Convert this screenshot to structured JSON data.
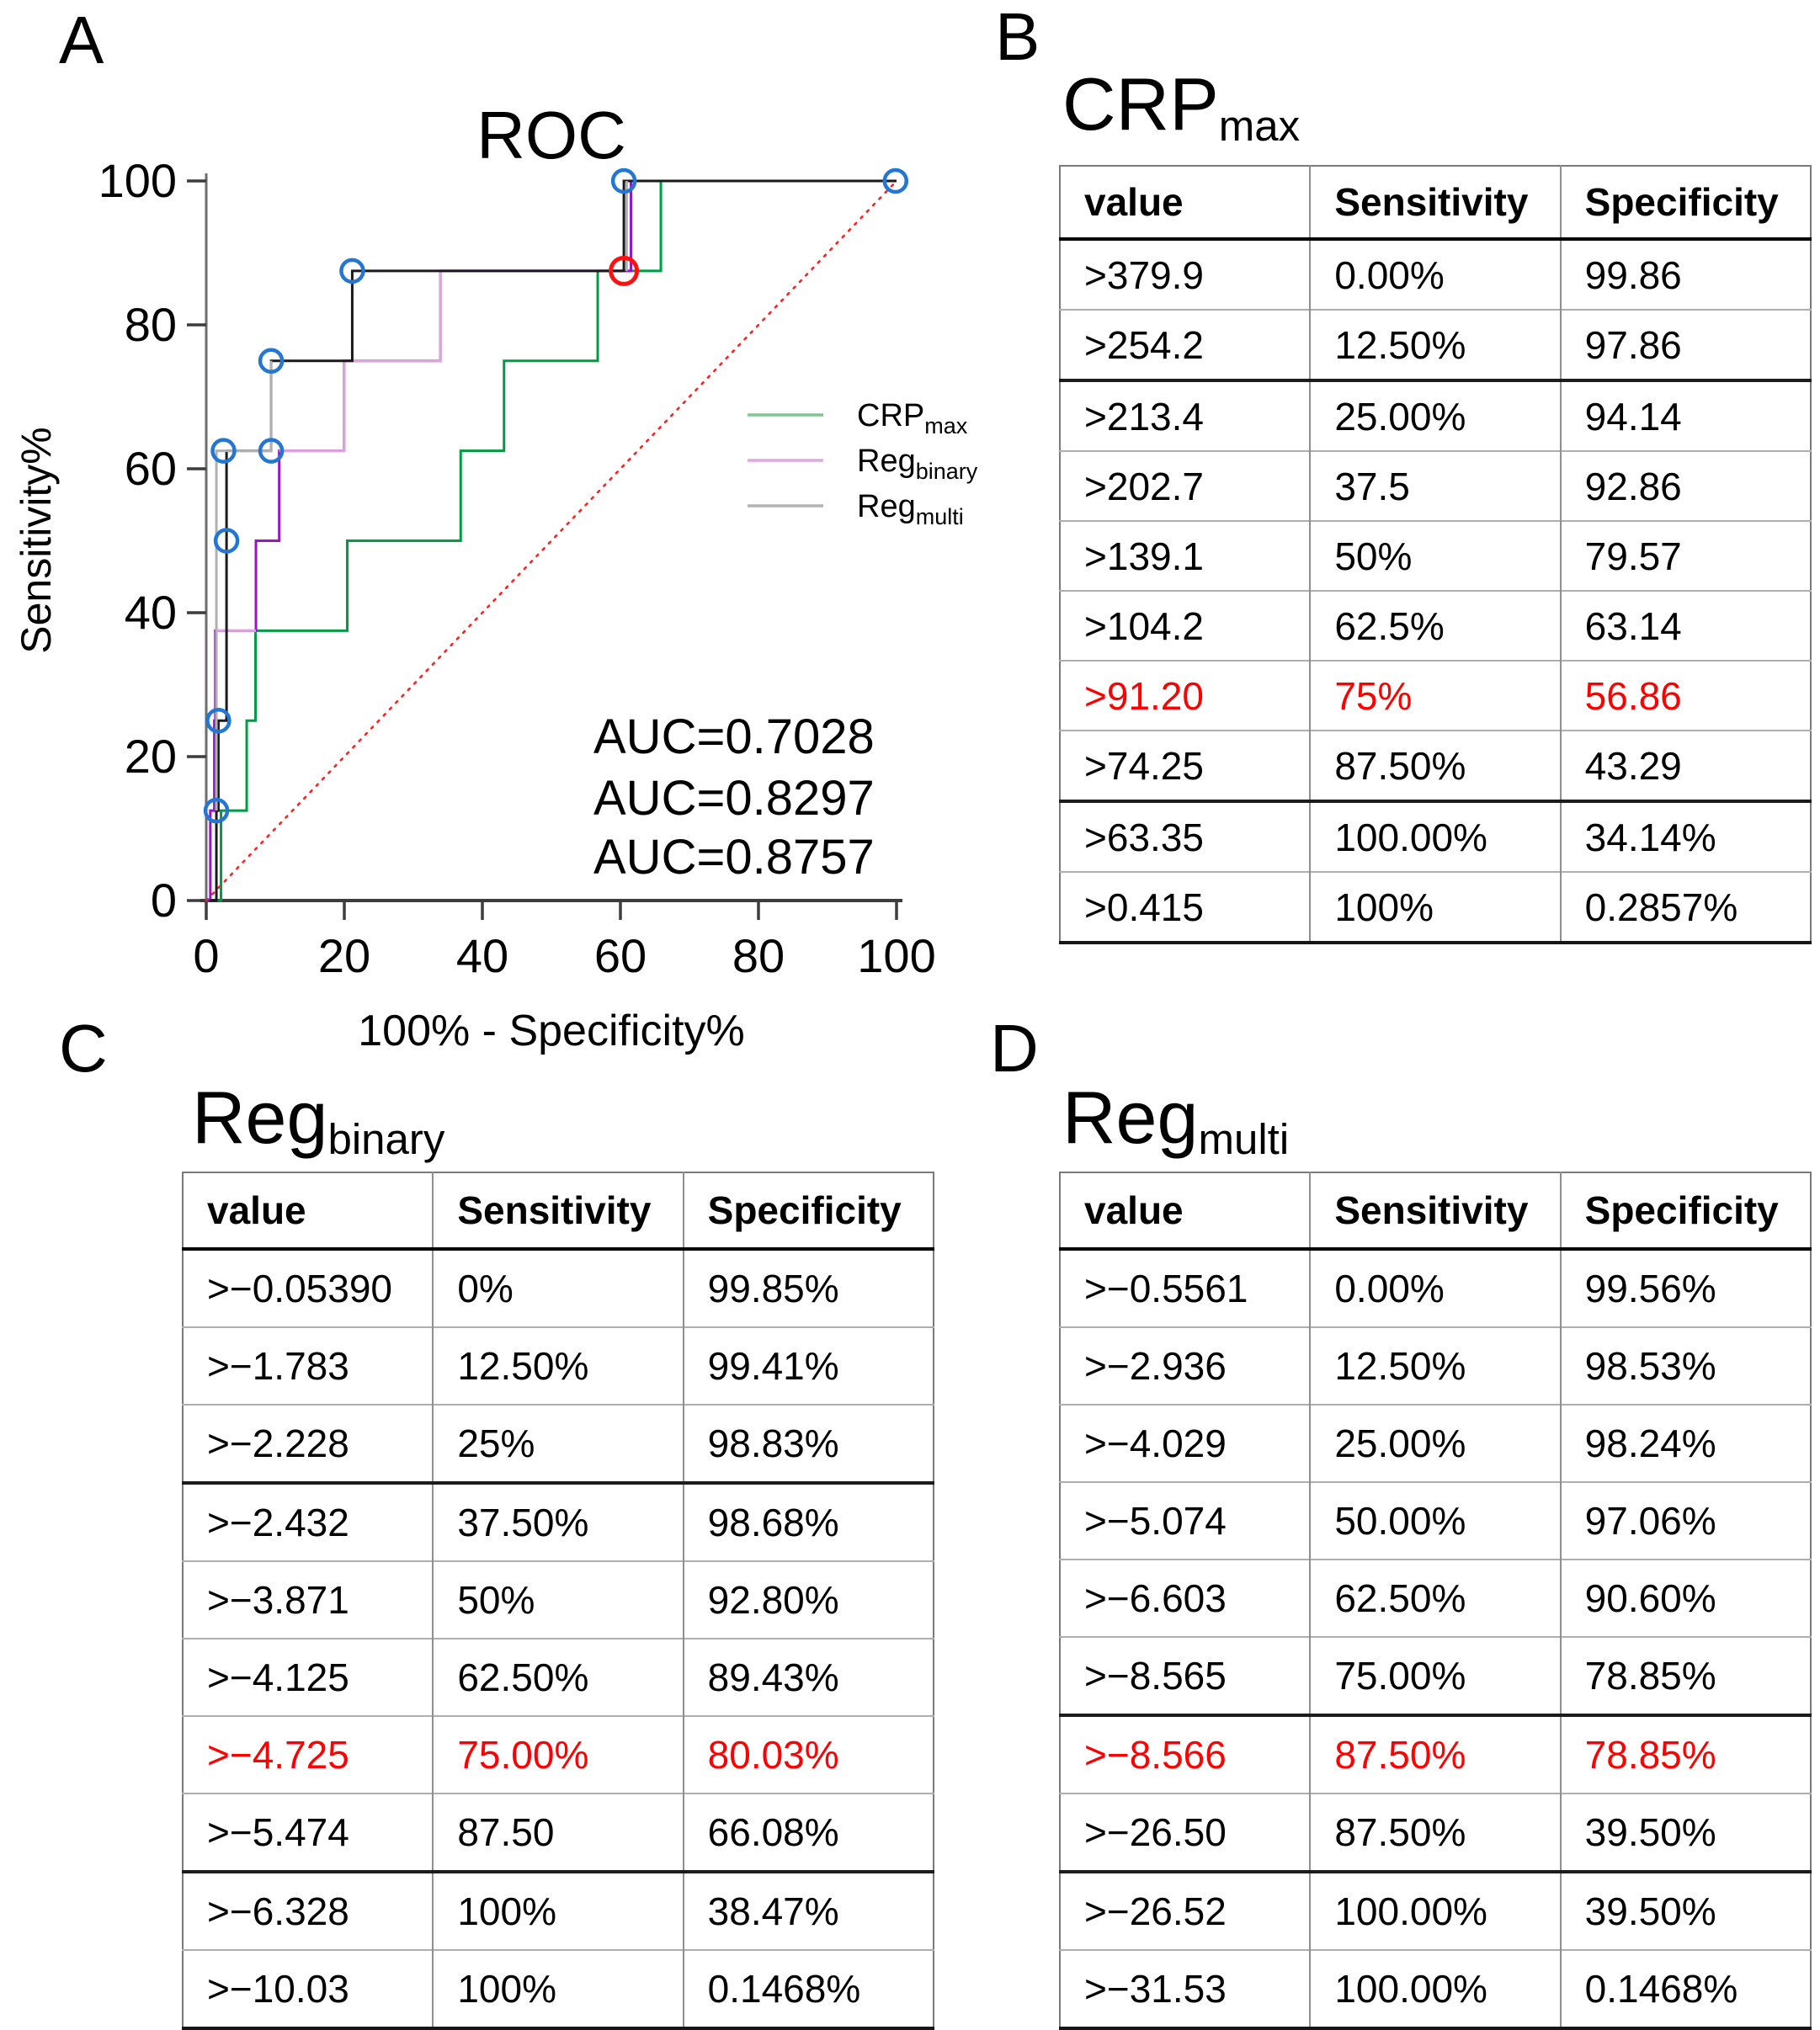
{
  "panels": {
    "a": {
      "label": "A",
      "chart_data": {
        "type": "line",
        "title": "ROC",
        "xlabel": "100% - Specificity%",
        "ylabel": "Sensitivity%",
        "xlim": [
          0,
          100
        ],
        "ylim": [
          0,
          100
        ],
        "xticks": [
          0,
          20,
          40,
          60,
          80,
          100
        ],
        "yticks": [
          0,
          20,
          40,
          60,
          80,
          100
        ],
        "grid": false,
        "legend_position": "right-inside",
        "diagonal": {
          "from": [
            0,
            0
          ],
          "to": [
            100,
            100
          ],
          "color": "#ff2020",
          "style": "dotted"
        },
        "series": [
          {
            "name": {
              "base": "CRP",
              "sub": "max"
            },
            "color": "#009c41",
            "legend_color": "#7dc98f",
            "auc": 0.7028,
            "points": [
              [
                0.14,
                0
              ],
              [
                2.14,
                0
              ],
              [
                2.14,
                12.5
              ],
              [
                5.86,
                12.5
              ],
              [
                5.86,
                25
              ],
              [
                7.14,
                25
              ],
              [
                7.14,
                37.5
              ],
              [
                20.43,
                37.5
              ],
              [
                20.43,
                50
              ],
              [
                36.86,
                50
              ],
              [
                36.86,
                62.5
              ],
              [
                43.14,
                62.5
              ],
              [
                43.14,
                75
              ],
              [
                56.71,
                75
              ],
              [
                56.71,
                87.5
              ],
              [
                65.86,
                87.5
              ],
              [
                65.86,
                100
              ],
              [
                99.71,
                100
              ],
              [
                100,
                100
              ]
            ]
          },
          {
            "name": {
              "base": "Reg",
              "sub": "binary"
            },
            "color": "#9417c2",
            "legend_color": "#dfa6e0",
            "auc": 0.8297,
            "points": [
              [
                0.15,
                0
              ],
              [
                0.59,
                0
              ],
              [
                0.59,
                12.5
              ],
              [
                1.17,
                12.5
              ],
              [
                1.17,
                25
              ],
              [
                1.32,
                25
              ],
              [
                1.32,
                37.5
              ],
              [
                7.2,
                37.5
              ],
              [
                7.2,
                50
              ],
              [
                10.57,
                50
              ],
              [
                10.57,
                62.5
              ],
              [
                19.97,
                62.5
              ],
              [
                19.97,
                75
              ],
              [
                33.92,
                75
              ],
              [
                33.92,
                87.5
              ],
              [
                61.53,
                87.5
              ],
              [
                61.53,
                100
              ],
              [
                99.85,
                100
              ],
              [
                100,
                100
              ]
            ],
            "overlay_color": "#dca3dd",
            "overlays": [
              [
                [
                  1.32,
                  37.5
                ],
                [
                  7.2,
                  37.5
                ]
              ],
              [
                [
                  10.57,
                  62.5
                ],
                [
                  19.97,
                  62.5
                ],
                [
                  19.97,
                  75
                ],
                [
                  33.92,
                  75
                ],
                [
                  33.92,
                  87.5
                ]
              ]
            ]
          },
          {
            "name": {
              "base": "Reg",
              "sub": "multi"
            },
            "color": "#1a1a1a",
            "legend_color": "#b3b3b3",
            "auc": 0.8757,
            "points": [
              [
                0.44,
                0
              ],
              [
                1.47,
                0
              ],
              [
                1.47,
                12.5
              ],
              [
                1.76,
                12.5
              ],
              [
                1.76,
                25
              ],
              [
                2.94,
                25
              ],
              [
                2.94,
                62.5
              ],
              [
                9.4,
                62.5
              ],
              [
                9.4,
                75
              ],
              [
                21.15,
                75
              ],
              [
                21.15,
                87.5
              ],
              [
                60.5,
                87.5
              ],
              [
                60.5,
                100
              ],
              [
                99.85,
                100
              ],
              [
                100,
                100
              ]
            ],
            "overlay_color": "#b0b0b0",
            "overlays": [
              [
                [
                  1.47,
                  12.5
                ],
                [
                  1.47,
                  62.5
                ],
                [
                  9.4,
                  62.5
                ],
                [
                  9.4,
                  75
                ]
              ],
              [
                [
                  60.9,
                  87.5
                ],
                [
                  60.9,
                  100
                ]
              ]
            ]
          }
        ],
        "markers": {
          "step_points": {
            "color": "#2376d2",
            "radius": 13,
            "points": [
              [
                1.47,
                12.5
              ],
              [
                1.76,
                25
              ],
              [
                2.94,
                50
              ],
              [
                2.5,
                62.5
              ],
              [
                9.4,
                62.5
              ],
              [
                9.4,
                75
              ],
              [
                21.15,
                87.5
              ],
              [
                60.5,
                100
              ],
              [
                99.85,
                100
              ]
            ]
          },
          "cutoff_point": {
            "color": "#ff1111",
            "radius": 15.5,
            "points": [
              [
                60.5,
                87.5
              ]
            ]
          }
        },
        "auc_labels": [
          {
            "text": "AUC=0.7028",
            "color": "#00a33c"
          },
          {
            "text": "AUC=0.8297",
            "color": "#a81bc4"
          },
          {
            "text": "AUC=0.8757",
            "color": "#000000"
          }
        ]
      }
    },
    "b": {
      "label": "B",
      "title": {
        "base": "CRP",
        "sub": "max"
      },
      "table": {
        "headers": [
          "value",
          "Sensitivity",
          "Specificity"
        ],
        "thick_row_tops": [
          2,
          8
        ],
        "rows": [
          {
            "value": ">379.9",
            "sensitivity": "0.00%",
            "specificity": "99.86",
            "red": false
          },
          {
            "value": ">254.2",
            "sensitivity": "12.50%",
            "specificity": "97.86",
            "red": false
          },
          {
            "value": ">213.4",
            "sensitivity": "25.00%",
            "specificity": "94.14",
            "red": false
          },
          {
            "value": ">202.7",
            "sensitivity": "37.5",
            "specificity": "92.86",
            "red": false
          },
          {
            "value": ">139.1",
            "sensitivity": "50%",
            "specificity": "79.57",
            "red": false
          },
          {
            "value": ">104.2",
            "sensitivity": "62.5%",
            "specificity": "63.14",
            "red": false
          },
          {
            "value": ">91.20",
            "sensitivity": "75%",
            "specificity": "56.86",
            "red": true
          },
          {
            "value": ">74.25",
            "sensitivity": "87.50%",
            "specificity": "43.29",
            "red": false
          },
          {
            "value": ">63.35",
            "sensitivity": "100.00%",
            "specificity": "34.14%",
            "red": false
          },
          {
            "value": ">0.415",
            "sensitivity": "100%",
            "specificity": "0.2857%",
            "red": false
          }
        ]
      }
    },
    "c": {
      "label": "C",
      "title": {
        "base": "Reg",
        "sub": "binary"
      },
      "table": {
        "headers": [
          "value",
          "Sensitivity",
          "Specificity"
        ],
        "thick_row_tops": [
          3,
          8
        ],
        "rows": [
          {
            "value": ">−0.05390",
            "sensitivity": "0%",
            "specificity": "99.85%",
            "red": false
          },
          {
            "value": ">−1.783",
            "sensitivity": "12.50%",
            "specificity": "99.41%",
            "red": false
          },
          {
            "value": ">−2.228",
            "sensitivity": "25%",
            "specificity": "98.83%",
            "red": false
          },
          {
            "value": ">−2.432",
            "sensitivity": "37.50%",
            "specificity": "98.68%",
            "red": false
          },
          {
            "value": ">−3.871",
            "sensitivity": "50%",
            "specificity": "92.80%",
            "red": false
          },
          {
            "value": ">−4.125",
            "sensitivity": "62.50%",
            "specificity": "89.43%",
            "red": false
          },
          {
            "value": ">−4.725",
            "sensitivity": "75.00%",
            "specificity": "80.03%",
            "red": true
          },
          {
            "value": ">−5.474",
            "sensitivity": "87.50",
            "specificity": "66.08%",
            "red": false
          },
          {
            "value": ">−6.328",
            "sensitivity": "100%",
            "specificity": "38.47%",
            "red": false
          },
          {
            "value": ">−10.03",
            "sensitivity": "100%",
            "specificity": "0.1468%",
            "red": false
          }
        ]
      }
    },
    "d": {
      "label": "D",
      "title": {
        "base": "Reg",
        "sub": "multi"
      },
      "table": {
        "headers": [
          "value",
          "Sensitivity",
          "Specificity"
        ],
        "thick_row_tops": [
          6,
          8
        ],
        "rows": [
          {
            "value": ">−0.5561",
            "sensitivity": "0.00%",
            "specificity": "99.56%",
            "red": false
          },
          {
            "value": ">−2.936",
            "sensitivity": "12.50%",
            "specificity": "98.53%",
            "red": false
          },
          {
            "value": ">−4.029",
            "sensitivity": "25.00%",
            "specificity": "98.24%",
            "red": false
          },
          {
            "value": ">−5.074",
            "sensitivity": "50.00%",
            "specificity": "97.06%",
            "red": false
          },
          {
            "value": ">−6.603",
            "sensitivity": "62.50%",
            "specificity": "90.60%",
            "red": false
          },
          {
            "value": ">−8.565",
            "sensitivity": "75.00%",
            "specificity": "78.85%",
            "red": false
          },
          {
            "value": ">−8.566",
            "sensitivity": "87.50%",
            "specificity": "78.85%",
            "red": true
          },
          {
            "value": ">−26.50",
            "sensitivity": "87.50%",
            "specificity": "39.50%",
            "red": false
          },
          {
            "value": ">−26.52",
            "sensitivity": "100.00%",
            "specificity": "39.50%",
            "red": false
          },
          {
            "value": ">−31.53",
            "sensitivity": "100.00%",
            "specificity": "0.1468%",
            "red": false
          }
        ]
      }
    }
  }
}
